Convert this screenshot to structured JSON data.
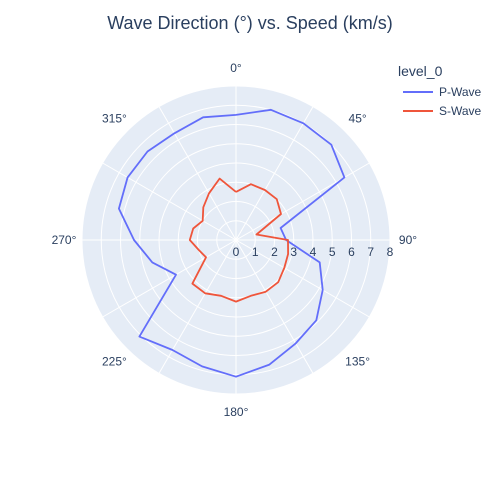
{
  "chart_data": {
    "type": "line",
    "polar": true,
    "title": "Wave Direction (°) vs. Speed (km/s)",
    "angular_unit": "degrees",
    "angular_direction": "clockwise",
    "rotation": "0° at top",
    "radial_range": [
      0,
      8
    ],
    "radial_ticks": [
      "0",
      "1",
      "2",
      "3",
      "4",
      "5",
      "6",
      "7",
      "8"
    ],
    "angular_ticks": [
      "0°",
      "45°",
      "90°",
      "135°",
      "180°",
      "225°",
      "270°",
      "315°"
    ],
    "grid": true,
    "legend": {
      "title": "level_0",
      "placement": "top-right"
    },
    "series": [
      {
        "name": "P-Wave",
        "color": "#636efa",
        "theta": [
          0,
          15,
          30,
          45,
          60,
          75,
          90,
          105,
          120,
          135,
          150,
          165,
          180,
          195,
          210,
          225,
          240,
          255,
          270,
          285,
          300,
          315,
          330,
          345,
          360
        ],
        "r": [
          6.5,
          7,
          7,
          7,
          6.5,
          2.4,
          2.6,
          4.5,
          5.2,
          5.9,
          6.2,
          6.7,
          7.1,
          6.8,
          6.6,
          7.1,
          3.6,
          4.5,
          5.3,
          6.3,
          6.5,
          6.5,
          6.4,
          6.6,
          6.5
        ]
      },
      {
        "name": "S-Wave",
        "color": "#ef553b",
        "theta": [
          0,
          15,
          30,
          45,
          60,
          75,
          90,
          105,
          120,
          135,
          150,
          165,
          180,
          195,
          210,
          225,
          240,
          255,
          270,
          285,
          300,
          315,
          330,
          345,
          360
        ],
        "r": [
          2.5,
          3,
          3,
          3,
          2.7,
          1.1,
          2.7,
          2.8,
          2.9,
          3.1,
          3.1,
          3.0,
          3.2,
          3.0,
          3.2,
          3.2,
          1.8,
          2.0,
          2.4,
          2.3,
          2.0,
          2.4,
          2.8,
          3.3,
          2.5
        ]
      }
    ]
  }
}
